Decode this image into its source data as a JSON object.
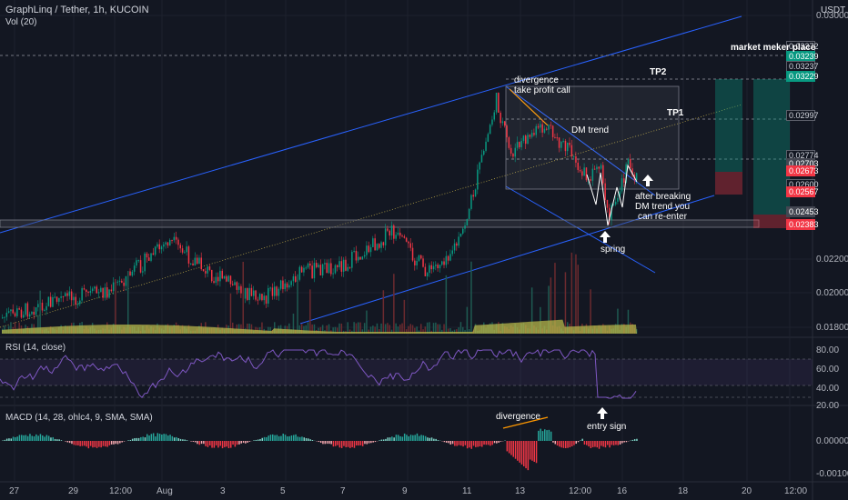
{
  "header": {
    "symbol": "GraphLinq / Tether, 1h, KUCOIN",
    "volume": "Vol (20)",
    "currency": "USDT"
  },
  "price_axis": [
    "0.03000",
    "0.02200",
    "0.02000",
    "0.01800"
  ],
  "price_tags": [
    {
      "label": "0.03372",
      "style": "plain"
    },
    {
      "label": "0.03239",
      "style": "green"
    },
    {
      "label": "0.03237",
      "style": "plain"
    },
    {
      "label": "0.03229",
      "style": "green"
    },
    {
      "label": "0.02997",
      "style": "plain"
    },
    {
      "label": "0.02774",
      "style": "plain"
    },
    {
      "label": "0.02703",
      "style": "gray"
    },
    {
      "label": "0.02673",
      "style": "red"
    },
    {
      "label": "0.02600",
      "style": "plain"
    },
    {
      "label": "0.02567",
      "style": "red"
    },
    {
      "label": "0.02453",
      "style": "gray"
    },
    {
      "label": "0.02383",
      "style": "red"
    }
  ],
  "annotations": {
    "market_maker": "market meker place",
    "tp2": "TP2",
    "tp1": "TP1",
    "divergence_top_1": "divergence",
    "divergence_top_2": "take profit call",
    "dm_trend": "DM trend",
    "after_1": "after breaking",
    "after_2": "DM trend you",
    "after_3": "can re-enter",
    "spring": "spring",
    "divergence_macd": "divergence",
    "entry_sign": "entry sign"
  },
  "rsi": {
    "title": "RSI (14, close)",
    "axis": [
      "80.00",
      "60.00",
      "40.00",
      "20.00"
    ]
  },
  "macd": {
    "title": "MACD (14, 28, ohlc4, 9, SMA, SMA)",
    "axis": [
      "0.00000",
      "-0.00100"
    ]
  },
  "dates": [
    "27",
    "29",
    "12:00",
    "Aug",
    "3",
    "5",
    "7",
    "9",
    "11",
    "13",
    "12:00",
    "16",
    "18",
    "20",
    "12:00"
  ],
  "colors": {
    "bg": "#131722",
    "up": "#089981",
    "down": "#f23645",
    "channel": "#2962ff",
    "rsi": "#7e57c2",
    "volume": "#b5b54a",
    "orange": "#ff9800"
  }
}
